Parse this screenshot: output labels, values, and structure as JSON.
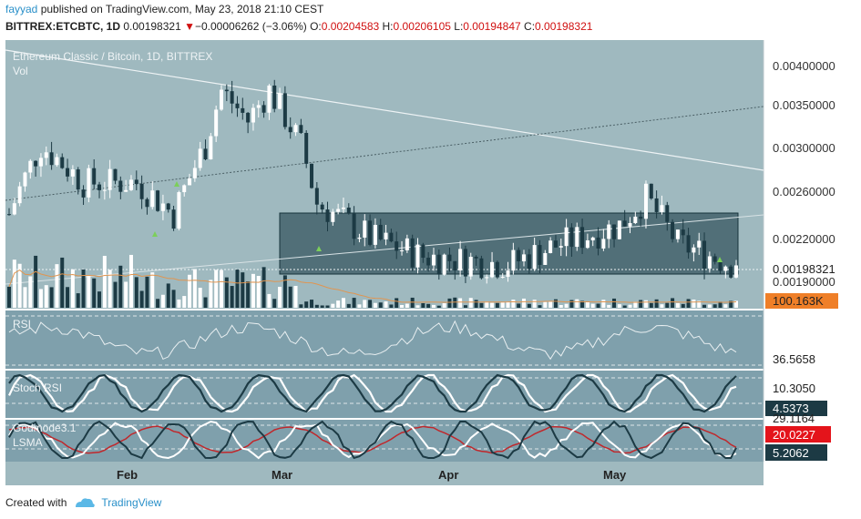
{
  "header": {
    "user": "fayyad",
    "published": "published on TradingView.com, May 23, 2018 21:10 CEST",
    "symbol": "BITTREX:ETCBTC, 1D",
    "last": "0.00198321",
    "change_arrow": "▼",
    "change": "−0.00006262 (−3.06%)",
    "o_label": "O:",
    "o": "0.00204583",
    "h_label": "H:",
    "h": "0.00206105",
    "l_label": "L:",
    "l": "0.00194847",
    "c_label": "C:",
    "c": "0.00198321"
  },
  "chart": {
    "title": "Ethereum Classic / Bitcoin, 1D, BITTREX",
    "vol_label": "Vol",
    "price_ticks": [
      "0.00400000",
      "0.00350000",
      "0.00300000",
      "0.00260000",
      "0.00220000",
      "0.00190000"
    ],
    "price_tick_values": [
      0.004,
      0.0035,
      0.003,
      0.0026,
      0.0022,
      0.0019
    ],
    "last_price_label": "0.00198321",
    "volume_label": "100.163K",
    "x_ticks": [
      "Feb",
      "Mar",
      "Apr",
      "May"
    ],
    "colors": {
      "background": "#9fb9bf",
      "box": "#3f5f68",
      "up": "#ffffff",
      "down": "#1c3a44",
      "accent_red": "#e4141b",
      "volume_label_bg": "#ef7f28"
    }
  },
  "indicators": {
    "rsi": {
      "label": "RSI",
      "value": "36.5658"
    },
    "stoch": {
      "label": "Stoch RSI",
      "value1": "10.3050",
      "value2": "4.5373"
    },
    "godmode": {
      "label": "Godmode3.1",
      "label2": "LSMA",
      "value_top": "29.1164",
      "value_red": "20.0227",
      "value_bottom": "5.2062"
    }
  },
  "footer": {
    "created_with": "Created with",
    "brand": "TradingView"
  },
  "chart_data": {
    "type": "candlestick",
    "title": "Ethereum Classic / Bitcoin, 1D, BITTREX",
    "x_range": [
      "2018-01-06",
      "2018-05-23"
    ],
    "y_range": [
      0.00185,
      0.0042
    ],
    "x_ticks": [
      "Feb",
      "Mar",
      "Apr",
      "May"
    ],
    "last_close": 0.00198321,
    "keypoints": [
      {
        "date": "2018-01-06",
        "price": 0.0024
      },
      {
        "date": "2018-01-12",
        "price": 0.0031
      },
      {
        "date": "2018-01-20",
        "price": 0.0027
      },
      {
        "date": "2018-01-30",
        "price": 0.0027
      },
      {
        "date": "2018-02-06",
        "price": 0.0024
      },
      {
        "date": "2018-02-12",
        "price": 0.0031
      },
      {
        "date": "2018-02-15",
        "price": 0.0038
      },
      {
        "date": "2018-02-20",
        "price": 0.0034
      },
      {
        "date": "2018-02-24",
        "price": 0.0038
      },
      {
        "date": "2018-03-02",
        "price": 0.0031
      },
      {
        "date": "2018-03-05",
        "price": 0.0025
      },
      {
        "date": "2018-03-15",
        "price": 0.0022
      },
      {
        "date": "2018-03-25",
        "price": 0.00205
      },
      {
        "date": "2018-04-10",
        "price": 0.00199
      },
      {
        "date": "2018-04-20",
        "price": 0.00215
      },
      {
        "date": "2018-05-01",
        "price": 0.0023
      },
      {
        "date": "2018-05-06",
        "price": 0.00255
      },
      {
        "date": "2018-05-12",
        "price": 0.00215
      },
      {
        "date": "2018-05-23",
        "price": 0.00198321
      }
    ]
  }
}
